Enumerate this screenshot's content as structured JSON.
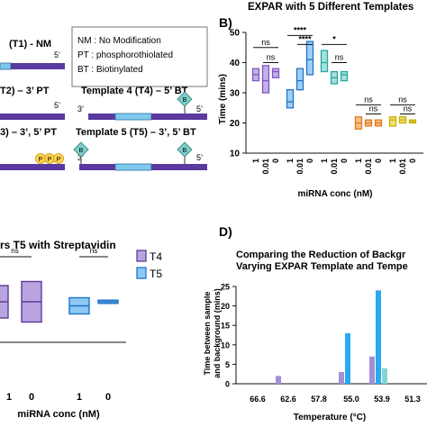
{
  "panelA": {
    "t1_label": "(T1) - NM",
    "t2_label": "T2) – 3’ PT",
    "t3_label": "3) – 3’, 5’ PT",
    "t4_label": "Template 4 (T4) – 5’ BT",
    "t5_label": "Template 5 (T5) – 3’, 5’ BT",
    "five_prime": "5’",
    "three_prime": "3’",
    "legend_line1": "NM : No Modification",
    "legend_line2": "PT : phosphorothiolated",
    "legend_line3": "BT : Biotinylated",
    "biotin_letter": "B",
    "ps_letter": "P"
  },
  "panelB": {
    "letter": "B)",
    "title": "EXPAR with 5 Different Templates",
    "ylabel": "Time (mins)",
    "xlabel": "miRNA conc (nM)",
    "sig_ns": "ns",
    "sig_4star": "****",
    "sig_1star": "*"
  },
  "panelC": {
    "title": "rs T5 with Streptavidin",
    "xlabel": "miRNA conc (nM)",
    "sig_ns": "ns",
    "legend": [
      {
        "label": "T4",
        "color": "#b9a4e0",
        "stroke": "#5a3d99"
      },
      {
        "label": "T5",
        "color": "#8cc8f4",
        "stroke": "#1e74c8"
      }
    ]
  },
  "panelD": {
    "letter": "D)",
    "title_line1": "Comparing the Reduction of Backgr",
    "title_line2": "Varying EXPAR Template and Tempe",
    "ylabel_line1": "Time between sample",
    "ylabel_line2": "and background (mins)",
    "xlabel": "Temperature (°C)"
  },
  "chart_data": [
    {
      "id": "B",
      "type": "box",
      "title": "EXPAR with 5 Different Templates",
      "xlabel": "miRNA conc (nM)",
      "ylabel": "Time (mins)",
      "ylim": [
        10,
        50
      ],
      "yticks": [
        10,
        20,
        30,
        40,
        50
      ],
      "categories": [
        "1",
        "0.01",
        "0"
      ],
      "series": [
        {
          "color": "#7e56c2",
          "fill": "#c3b0e8",
          "boxes": [
            [
              34,
              36,
              38
            ],
            [
              30,
              34,
              39
            ],
            [
              35,
              37,
              38
            ]
          ]
        },
        {
          "color": "#1e74c8",
          "fill": "#9fd0f5",
          "boxes": [
            [
              25,
              27,
              31
            ],
            [
              31,
              34,
              38
            ],
            [
              36,
              41,
              47
            ]
          ]
        },
        {
          "color": "#2aa7a0",
          "fill": "#a8e0dc",
          "boxes": [
            [
              37,
              40,
              44
            ],
            [
              33,
              35,
              37
            ],
            [
              34,
              36,
              37
            ]
          ]
        },
        {
          "color": "#e07a1c",
          "fill": "#f6c089",
          "boxes": [
            [
              18,
              20,
              22
            ],
            [
              19,
              20,
              21
            ],
            [
              19,
              20,
              21
            ]
          ]
        },
        {
          "color": "#c9b000",
          "fill": "#efe07a",
          "boxes": [
            [
              19,
              21,
              22
            ],
            [
              20,
              21,
              22
            ],
            [
              20,
              20.5,
              21
            ]
          ]
        }
      ],
      "significance": [
        "ns",
        "ns",
        "****",
        "****",
        "ns",
        "*",
        "ns",
        "ns",
        "ns",
        "ns"
      ]
    },
    {
      "id": "C",
      "type": "box",
      "title": "rs T5 with Streptavidin",
      "xlabel": "miRNA conc (nM)",
      "legend": [
        "T4",
        "T5"
      ],
      "categories": [
        "1",
        "0",
        "1",
        "0"
      ],
      "series": [
        {
          "name": "T4",
          "boxes": [
            [
              3,
              5,
              7
            ],
            [
              2.5,
              5,
              7.5
            ]
          ]
        },
        {
          "name": "T5",
          "boxes": [
            [
              3.5,
              4.5,
              5.5
            ],
            [
              4.8,
              5,
              5.2
            ]
          ]
        }
      ],
      "significance": [
        "ns",
        "ns"
      ]
    },
    {
      "id": "D",
      "type": "bar",
      "title": "Comparing the Reduction of Backgr Varying EXPAR Template and Tempe",
      "xlabel": "Temperature (°C)",
      "ylabel": "Time between sample and background (mins)",
      "ylim": [
        0,
        25
      ],
      "yticks": [
        0,
        5,
        10,
        15,
        20,
        25
      ],
      "categories": [
        "66.6",
        "62.6",
        "57.8",
        "55.0",
        "53.9",
        "51.3"
      ],
      "series": [
        {
          "name": "purple",
          "color": "#a48fd6",
          "values": [
            0,
            2,
            0,
            3,
            7,
            0
          ]
        },
        {
          "name": "blue",
          "color": "#29a9f0",
          "values": [
            0,
            0,
            0,
            13,
            24,
            0
          ]
        },
        {
          "name": "teal",
          "color": "#86d6d0",
          "values": [
            0,
            0,
            0,
            0,
            4,
            0
          ]
        }
      ]
    }
  ]
}
